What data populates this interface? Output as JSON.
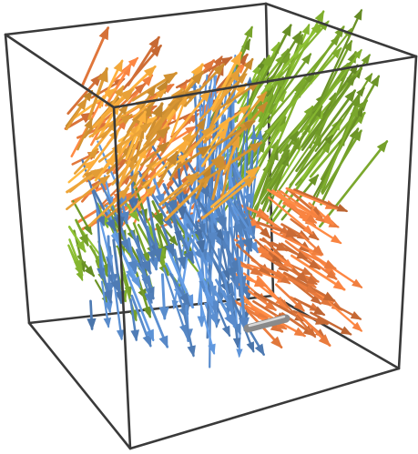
{
  "chart_data": {
    "type": "vector-field-3d",
    "title": "",
    "xlabel": "",
    "ylabel": "",
    "zlabel": "",
    "box": true,
    "axes": false,
    "grid": false,
    "legend": "none",
    "series": [
      {
        "name": "",
        "color": "#F4A93A",
        "region": "upper-left-front",
        "count": 90
      },
      {
        "name": "",
        "color": "#F07F3F",
        "region": "upper-left-back",
        "count": 70
      },
      {
        "name": "",
        "color": "#7FAE2E",
        "region": "upper-right-back",
        "count": 90
      },
      {
        "name": "",
        "color": "#F07F3F",
        "region": "lower-right",
        "count": 80
      },
      {
        "name": "",
        "color": "#5B8FD1",
        "region": "lower-left-front",
        "count": 110
      },
      {
        "name": "",
        "color": "#7FAE2E",
        "region": "lower-left-back",
        "count": 50
      },
      {
        "name": "",
        "color": "#5B8FD1",
        "region": "central-vertical",
        "count": 35
      }
    ],
    "colors": {
      "box": "#3a3a3a",
      "marker": "#8a8a8a"
    }
  }
}
